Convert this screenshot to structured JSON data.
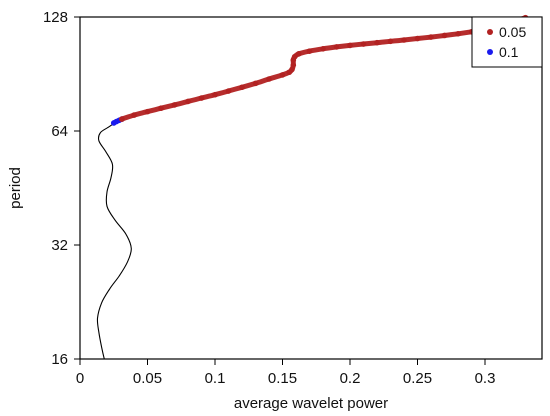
{
  "chart_data": {
    "type": "line",
    "title": "",
    "xlabel": "average wavelet power",
    "ylabel": "period",
    "xlim": [
      0,
      0.34
    ],
    "ylim": [
      16,
      128
    ],
    "y_scale": "log2",
    "grid": false,
    "legend_position": "top-right",
    "x_ticks": [
      "0",
      "0.05",
      "0.1",
      "0.15",
      "0.2",
      "0.25",
      "0.3"
    ],
    "y_ticks": [
      "16",
      "32",
      "64",
      "128"
    ],
    "series": [
      {
        "name": "",
        "color": "#000000",
        "style": "line",
        "points": [
          [
            0.018,
            16
          ],
          [
            0.016,
            17.2
          ],
          [
            0.014,
            18.8
          ],
          [
            0.013,
            20.5
          ],
          [
            0.016,
            22.5
          ],
          [
            0.022,
            24.5
          ],
          [
            0.029,
            26.5
          ],
          [
            0.035,
            28.8
          ],
          [
            0.038,
            31.3
          ],
          [
            0.034,
            34.2
          ],
          [
            0.026,
            37.2
          ],
          [
            0.02,
            40.5
          ],
          [
            0.02,
            44.2
          ],
          [
            0.023,
            48.2
          ],
          [
            0.024,
            52.3
          ],
          [
            0.019,
            56.5
          ],
          [
            0.014,
            60.3
          ],
          [
            0.015,
            63.3
          ],
          [
            0.021,
            65.5
          ],
          [
            0.026,
            67.4
          ]
        ]
      },
      {
        "name": "0.1",
        "color": "#1a1aee",
        "style": "points",
        "points": [
          [
            0.025,
            67.2
          ],
          [
            0.027,
            67.8
          ],
          [
            0.029,
            68.3
          ],
          [
            0.031,
            68.8
          ]
        ]
      },
      {
        "name": "0.05",
        "color": "#b22222",
        "style": "points",
        "points": [
          [
            0.031,
            68.8
          ],
          [
            0.04,
            70.5
          ],
          [
            0.05,
            72.0
          ],
          [
            0.06,
            73.5
          ],
          [
            0.07,
            75.0
          ],
          [
            0.08,
            76.6
          ],
          [
            0.09,
            78.2
          ],
          [
            0.1,
            79.8
          ],
          [
            0.11,
            81.6
          ],
          [
            0.12,
            83.5
          ],
          [
            0.13,
            85.5
          ],
          [
            0.14,
            87.8
          ],
          [
            0.15,
            90.0
          ],
          [
            0.155,
            91.5
          ],
          [
            0.157,
            93.0
          ],
          [
            0.158,
            95.5
          ],
          [
            0.158,
            98.5
          ],
          [
            0.159,
            100.5
          ],
          [
            0.162,
            102.3
          ],
          [
            0.17,
            104.0
          ],
          [
            0.18,
            105.5
          ],
          [
            0.19,
            106.7
          ],
          [
            0.2,
            107.7
          ],
          [
            0.21,
            108.6
          ],
          [
            0.22,
            109.5
          ],
          [
            0.23,
            110.4
          ],
          [
            0.24,
            111.3
          ],
          [
            0.25,
            112.3
          ],
          [
            0.26,
            113.3
          ],
          [
            0.27,
            114.4
          ],
          [
            0.28,
            115.6
          ],
          [
            0.29,
            117.0
          ],
          [
            0.3,
            118.7
          ],
          [
            0.31,
            121.0
          ],
          [
            0.32,
            124.0
          ],
          [
            0.33,
            127.5
          ]
        ]
      }
    ]
  }
}
